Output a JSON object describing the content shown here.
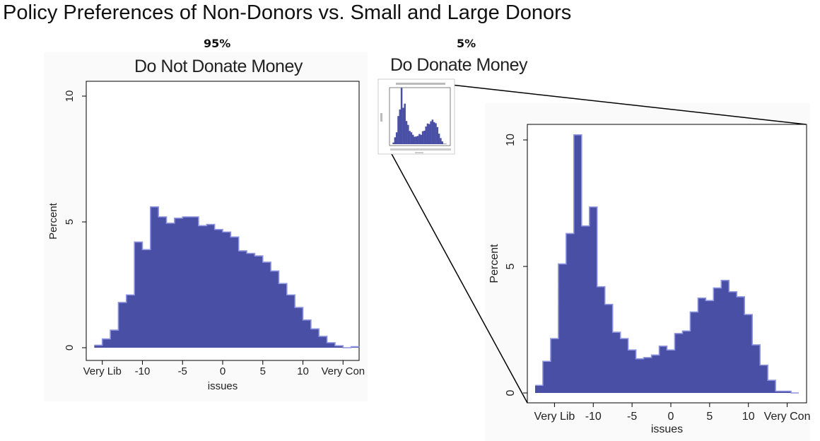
{
  "page_title": "Policy Preferences of Non-Donors vs. Small and Large Donors",
  "panels": {
    "left": {
      "share": "95%",
      "title": "Do Not Donate Money"
    },
    "right": {
      "share": "5%",
      "title": "Do Donate Money"
    }
  },
  "colors": {
    "bar_fill": "#4a4fa6",
    "bar_edge": "#8f95e0",
    "panel_bg": "#fafafa"
  },
  "chart_data": [
    {
      "type": "bar",
      "title": "Do Not Donate Money",
      "xlabel": "issues",
      "ylabel": "Percent",
      "xlim": [
        -17,
        17
      ],
      "ylim": [
        0,
        10
      ],
      "yticks": [
        0,
        5,
        10
      ],
      "xtick_labels": [
        {
          "value": -15,
          "label": "Very Lib"
        },
        {
          "value": -10,
          "label": "-10"
        },
        {
          "value": -5,
          "label": "-5"
        },
        {
          "value": 0,
          "label": "0"
        },
        {
          "value": 5,
          "label": "5"
        },
        {
          "value": 10,
          "label": "10"
        },
        {
          "value": 15,
          "label": "Very Con"
        }
      ],
      "bin_edges": [
        -16,
        -15,
        -14,
        -13,
        -12,
        -11,
        -10,
        -9,
        -8,
        -7,
        -6,
        -5,
        -4,
        -3,
        -2,
        -1,
        0,
        1,
        2,
        3,
        4,
        5,
        6,
        7,
        8,
        9,
        10,
        11,
        12,
        13,
        14,
        15,
        16,
        17
      ],
      "values": [
        0.1,
        0.35,
        0.7,
        1.8,
        2.1,
        4.2,
        3.9,
        5.6,
        5.2,
        4.95,
        5.15,
        5.2,
        5.2,
        4.85,
        4.9,
        4.7,
        4.6,
        4.4,
        3.85,
        3.75,
        3.65,
        3.4,
        3.05,
        2.55,
        2.1,
        1.6,
        1.1,
        0.75,
        0.45,
        0.2,
        0.08,
        0.0,
        0.04
      ]
    },
    {
      "type": "bar",
      "title": "Do Donate Money",
      "xlabel": "issues",
      "ylabel": "Percent",
      "xlim": [
        -18.5,
        17.5
      ],
      "ylim": [
        0,
        10
      ],
      "yticks": [
        0,
        5,
        10
      ],
      "xtick_labels": [
        {
          "value": -15,
          "label": "Very Lib"
        },
        {
          "value": -10,
          "label": "-10"
        },
        {
          "value": -5,
          "label": "-5"
        },
        {
          "value": 0,
          "label": "0"
        },
        {
          "value": 5,
          "label": "5"
        },
        {
          "value": 10,
          "label": "10"
        },
        {
          "value": 15,
          "label": "Very Con"
        }
      ],
      "bin_edges": [
        -17.5,
        -16.5,
        -15.5,
        -14.5,
        -13.5,
        -12.5,
        -11.5,
        -10.5,
        -9.5,
        -8.5,
        -7.5,
        -6.5,
        -5.5,
        -4.5,
        -3.5,
        -2.5,
        -1.5,
        -0.5,
        0.5,
        1.5,
        2.5,
        3.5,
        4.5,
        5.5,
        6.5,
        7.5,
        8.5,
        9.5,
        10.5,
        11.5,
        12.5,
        13.5,
        14.5,
        15.5,
        16.5
      ],
      "values": [
        0.3,
        1.25,
        2.15,
        5.1,
        6.3,
        10.2,
        6.6,
        7.35,
        4.2,
        3.5,
        2.4,
        2.15,
        1.7,
        1.35,
        1.4,
        1.5,
        1.85,
        1.7,
        2.35,
        2.45,
        3.2,
        3.75,
        3.65,
        4.15,
        4.45,
        4.0,
        3.8,
        3.1,
        1.9,
        1.1,
        0.5,
        0.07,
        0.07,
        0.0
      ]
    }
  ]
}
